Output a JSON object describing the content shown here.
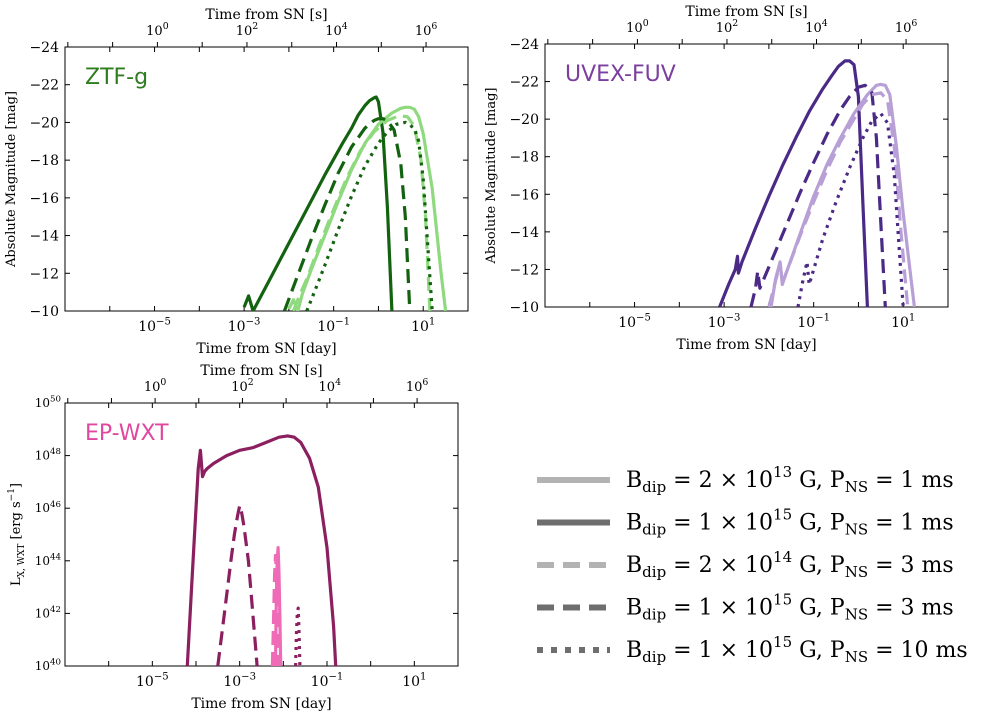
{
  "figure": {
    "legend": [
      {
        "style": "solid",
        "shade": "light",
        "label": "B_dip = 2×10^13 G, P_NS = 1 ms",
        "b_mant": "2",
        "b_exp": "13",
        "p": "1"
      },
      {
        "style": "solid",
        "shade": "dark",
        "label": "B_dip = 1×10^15 G, P_NS = 1 ms",
        "b_mant": "1",
        "b_exp": "15",
        "p": "1"
      },
      {
        "style": "dashed",
        "shade": "light",
        "label": "B_dip = 2×10^14 G, P_NS = 3 ms",
        "b_mant": "2",
        "b_exp": "14",
        "p": "3"
      },
      {
        "style": "dashed",
        "shade": "dark",
        "label": "B_dip = 1×10^15 G, P_NS = 3 ms",
        "b_mant": "1",
        "b_exp": "15",
        "p": "3"
      },
      {
        "style": "dotted",
        "shade": "dark",
        "label": "B_dip = 1×10^15 G, P_NS = 10 ms",
        "b_mant": "1",
        "b_exp": "15",
        "p": "10"
      }
    ],
    "legend_texts": {
      "b_sym": "B",
      "b_sub": "dip",
      "p_sym": "P",
      "p_sub": "NS",
      "unit_g": "G,",
      "unit_ms": "ms",
      "times": "×",
      "eq": "=",
      "ten": "10"
    }
  },
  "chart_data": [
    {
      "id": "ztf",
      "type": "line",
      "instrument": "ZTF-g",
      "color": "#2e7d1f",
      "xlabel": "Time from SN [day]",
      "top_xlabel": "Time from SN [s]",
      "ylabel": "Absolute Magnitude [mag]",
      "xscale": "log",
      "yscale": "linear",
      "y_inverted": true,
      "xlim": [
        -7,
        2
      ],
      "ylim": [
        -10,
        -24
      ],
      "x_tick_labels": [
        {
          "exp": "−5",
          "v": -5
        },
        {
          "exp": "−3",
          "v": -3
        },
        {
          "exp": "−1",
          "v": -1
        },
        {
          "exp": "1",
          "v": 1
        }
      ],
      "y_tick_labels": [
        "−24",
        "−22",
        "−20",
        "−18",
        "−16",
        "−14",
        "−12",
        "−10"
      ],
      "y_ticks": [
        -24,
        -22,
        -20,
        -18,
        -16,
        -14,
        -12,
        -10
      ],
      "top_tick_labels": [
        {
          "exp": "0",
          "v": 0
        },
        {
          "exp": "2",
          "v": 2
        },
        {
          "exp": "4",
          "v": 4
        },
        {
          "exp": "6",
          "v": 6
        }
      ],
      "series": [
        {
          "style": "solid",
          "shade": "dark",
          "x": [
            -3.0,
            -2.9,
            -2.8,
            -2.4,
            -2.0,
            -1.6,
            -1.2,
            -0.8,
            -0.6,
            -0.45,
            -0.3,
            -0.2,
            -0.1,
            -0.05,
            0.0,
            0.1,
            0.2,
            0.3
          ],
          "y": [
            -10.2,
            -10.8,
            -10.0,
            -11.8,
            -13.6,
            -15.4,
            -17.2,
            -18.9,
            -19.7,
            -20.4,
            -20.9,
            -21.15,
            -21.3,
            -21.35,
            -21.1,
            -19.5,
            -15.5,
            -10.0
          ]
        },
        {
          "style": "solid",
          "shade": "light",
          "x": [
            -2.0,
            -1.9,
            -1.8,
            -1.7,
            -1.5,
            -1.2,
            -0.9,
            -0.6,
            -0.3,
            0.0,
            0.3,
            0.5,
            0.6,
            0.7,
            0.8,
            0.9,
            1.0,
            1.2,
            1.4,
            1.5
          ],
          "y": [
            -10.1,
            -10.6,
            -10.0,
            -10.9,
            -12.2,
            -14.0,
            -15.8,
            -17.5,
            -18.9,
            -19.9,
            -20.5,
            -20.75,
            -20.8,
            -20.8,
            -20.7,
            -20.3,
            -19.4,
            -16.5,
            -12.0,
            -10.0
          ]
        },
        {
          "style": "dashed",
          "shade": "dark",
          "x": [
            -2.1,
            -1.8,
            -1.5,
            -1.2,
            -0.9,
            -0.6,
            -0.3,
            -0.1,
            0.0,
            0.1,
            0.2,
            0.35,
            0.5,
            0.6,
            0.7
          ],
          "y": [
            -10.0,
            -11.9,
            -13.8,
            -15.6,
            -17.3,
            -18.7,
            -19.7,
            -20.1,
            -20.2,
            -20.2,
            -20.1,
            -19.6,
            -17.8,
            -15.0,
            -10.0
          ]
        },
        {
          "style": "dashed",
          "shade": "light",
          "x": [
            -1.9,
            -1.75,
            -1.6,
            -1.3,
            -1.0,
            -0.7,
            -0.4,
            -0.1,
            0.2,
            0.4,
            0.5,
            0.65,
            0.8,
            0.95,
            1.05,
            1.15
          ],
          "y": [
            -10.0,
            -10.9,
            -11.7,
            -13.6,
            -15.4,
            -17.1,
            -18.5,
            -19.5,
            -20.1,
            -20.3,
            -20.35,
            -20.3,
            -19.8,
            -18.0,
            -15.0,
            -10.0
          ]
        },
        {
          "style": "dotted",
          "shade": "dark",
          "x": [
            -1.6,
            -1.4,
            -1.2,
            -0.9,
            -0.6,
            -0.3,
            0.0,
            0.2,
            0.4,
            0.6,
            0.8,
            0.9,
            1.0,
            1.1,
            1.2
          ],
          "y": [
            -10.0,
            -11.2,
            -12.4,
            -14.3,
            -16.1,
            -17.7,
            -18.9,
            -19.5,
            -19.9,
            -20.0,
            -19.7,
            -19.0,
            -17.0,
            -13.5,
            -10.0
          ]
        }
      ]
    },
    {
      "id": "uvex",
      "type": "line",
      "instrument": "UVEX-FUV",
      "color": "#7b3fa0",
      "xlabel": "Time from SN [day]",
      "top_xlabel": "Time from SN [s]",
      "ylabel": "Absolute Magnitude [mag]",
      "xscale": "log",
      "yscale": "linear",
      "y_inverted": true,
      "xlim": [
        -7,
        2
      ],
      "ylim": [
        -10,
        -24
      ],
      "x_tick_labels": [
        {
          "exp": "−5",
          "v": -5
        },
        {
          "exp": "−3",
          "v": -3
        },
        {
          "exp": "−1",
          "v": -1
        },
        {
          "exp": "1",
          "v": 1
        }
      ],
      "y_tick_labels": [
        "−24",
        "−22",
        "−20",
        "−18",
        "−16",
        "−14",
        "−12",
        "−10"
      ],
      "y_ticks": [
        -24,
        -22,
        -20,
        -18,
        -16,
        -14,
        -12,
        -10
      ],
      "top_tick_labels": [
        {
          "exp": "0",
          "v": 0
        },
        {
          "exp": "2",
          "v": 2
        },
        {
          "exp": "4",
          "v": 4
        },
        {
          "exp": "6",
          "v": 6
        }
      ],
      "series": [
        {
          "style": "solid",
          "shade": "dark",
          "x": [
            -3.1,
            -2.9,
            -2.75,
            -2.7,
            -2.68,
            -2.6,
            -2.3,
            -2.0,
            -1.7,
            -1.4,
            -1.1,
            -0.8,
            -0.6,
            -0.45,
            -0.3,
            -0.2,
            -0.1,
            0.0,
            0.1,
            0.2
          ],
          "y": [
            -10.0,
            -11.2,
            -12.0,
            -12.7,
            -11.8,
            -12.4,
            -14.2,
            -15.9,
            -17.5,
            -19.0,
            -20.4,
            -21.6,
            -22.3,
            -22.8,
            -23.1,
            -23.1,
            -22.9,
            -21.2,
            -15.5,
            -10.0
          ]
        },
        {
          "style": "solid",
          "shade": "light",
          "x": [
            -1.95,
            -1.85,
            -1.75,
            -1.7,
            -1.6,
            -1.3,
            -1.0,
            -0.7,
            -0.4,
            -0.1,
            0.2,
            0.4,
            0.5,
            0.6,
            0.7,
            0.85,
            1.0,
            1.15,
            1.25
          ],
          "y": [
            -10.0,
            -11.5,
            -12.4,
            -11.2,
            -11.9,
            -13.9,
            -15.9,
            -17.6,
            -19.0,
            -20.3,
            -21.3,
            -21.8,
            -21.85,
            -21.8,
            -21.3,
            -18.5,
            -15.0,
            -12.0,
            -10.0
          ]
        },
        {
          "style": "dashed",
          "shade": "dark",
          "x": [
            -2.4,
            -2.3,
            -2.25,
            -2.2,
            -1.9,
            -1.6,
            -1.3,
            -1.0,
            -0.7,
            -0.4,
            -0.2,
            0.0,
            0.15,
            0.3,
            0.4,
            0.5,
            0.6
          ],
          "y": [
            -10.0,
            -11.0,
            -11.9,
            -11.0,
            -12.7,
            -14.4,
            -16.1,
            -17.7,
            -19.2,
            -20.5,
            -21.2,
            -21.7,
            -21.8,
            -21.4,
            -19.0,
            -14.5,
            -10.0
          ]
        },
        {
          "style": "dashed",
          "shade": "light",
          "x": [
            -2.0,
            -1.85,
            -1.75,
            -1.7,
            -1.6,
            -1.3,
            -1.0,
            -0.7,
            -0.4,
            -0.1,
            0.1,
            0.3,
            0.5,
            0.65,
            0.8,
            0.95,
            1.1
          ],
          "y": [
            -10.0,
            -11.4,
            -12.3,
            -11.3,
            -11.9,
            -13.8,
            -15.6,
            -17.3,
            -18.8,
            -20.0,
            -20.8,
            -21.3,
            -21.4,
            -21.0,
            -18.5,
            -14.0,
            -10.0
          ]
        },
        {
          "style": "dotted",
          "shade": "dark",
          "x": [
            -1.35,
            -1.25,
            -1.15,
            -1.1,
            -1.0,
            -0.8,
            -0.5,
            -0.2,
            0.1,
            0.3,
            0.5,
            0.65,
            0.8,
            0.9,
            1.0
          ],
          "y": [
            -10.0,
            -11.3,
            -12.4,
            -11.2,
            -12.0,
            -13.6,
            -15.6,
            -17.4,
            -19.0,
            -19.9,
            -20.3,
            -19.8,
            -17.0,
            -13.5,
            -10.0
          ]
        }
      ]
    },
    {
      "id": "ep",
      "type": "line",
      "instrument": "EP-WXT",
      "color": "#e0479e",
      "xlabel": "Time from SN [day]",
      "top_xlabel": "Time from SN [s]",
      "ylabel_main": "L",
      "ylabel_sub": "X, WXT",
      "ylabel_unit": "[erg s",
      "ylabel_unit_exp": "−1",
      "ylabel_close": "]",
      "xscale": "log",
      "yscale": "log",
      "xlim": [
        -7,
        2
      ],
      "ylim": [
        40,
        50
      ],
      "x_tick_labels": [
        {
          "exp": "−5",
          "v": -5
        },
        {
          "exp": "−3",
          "v": -3
        },
        {
          "exp": "−1",
          "v": -1
        },
        {
          "exp": "1",
          "v": 1
        }
      ],
      "y_tick_labels": [
        {
          "exp": "50",
          "v": 50
        },
        {
          "exp": "48",
          "v": 48
        },
        {
          "exp": "46",
          "v": 46
        },
        {
          "exp": "44",
          "v": 44
        },
        {
          "exp": "42",
          "v": 42
        },
        {
          "exp": "40",
          "v": 40
        }
      ],
      "top_tick_labels": [
        {
          "exp": "0",
          "v": 0
        },
        {
          "exp": "2",
          "v": 2
        },
        {
          "exp": "4",
          "v": 4
        },
        {
          "exp": "6",
          "v": 6
        }
      ],
      "series": [
        {
          "style": "solid",
          "shade": "dark",
          "x": [
            -4.2,
            -4.1,
            -4.0,
            -3.95,
            -3.9,
            -3.85,
            -3.8,
            -3.75,
            -3.6,
            -3.3,
            -3.0,
            -2.7,
            -2.4,
            -2.1,
            -1.9,
            -1.75,
            -1.6,
            -1.4,
            -1.2,
            -1.0,
            -0.85,
            -0.8
          ],
          "y": [
            40.0,
            43.0,
            46.0,
            47.5,
            48.2,
            47.2,
            47.4,
            47.5,
            47.7,
            48.0,
            48.2,
            48.3,
            48.5,
            48.7,
            48.75,
            48.7,
            48.5,
            47.9,
            46.8,
            44.5,
            41.5,
            40.0
          ]
        },
        {
          "style": "dashed",
          "shade": "dark",
          "x": [
            -3.5,
            -3.35,
            -3.2,
            -3.12,
            -3.05,
            -3.0,
            -2.95,
            -2.9,
            -2.8,
            -2.7,
            -2.6
          ],
          "y": [
            40.0,
            42.0,
            44.0,
            45.0,
            45.7,
            46.1,
            45.8,
            45.3,
            44.0,
            42.0,
            40.0
          ]
        },
        {
          "style": "solid",
          "shade": "light",
          "x": [
            -2.18,
            -2.16,
            -2.14,
            -2.12,
            -2.1,
            -2.08,
            -2.06
          ],
          "y": [
            40.0,
            42.5,
            44.0,
            44.5,
            43.5,
            42.0,
            40.0
          ]
        },
        {
          "style": "dashed",
          "shade": "light",
          "x": [
            -2.25,
            -2.22,
            -2.2,
            -2.18,
            -2.16,
            -2.14,
            -2.12
          ],
          "y": [
            40.0,
            42.0,
            43.5,
            44.2,
            43.6,
            42.0,
            40.0
          ]
        },
        {
          "style": "dotted",
          "shade": "dark",
          "x": [
            -1.72,
            -1.7,
            -1.68,
            -1.66,
            -1.64,
            -1.62
          ],
          "y": [
            40.0,
            41.2,
            42.0,
            42.2,
            41.2,
            40.0
          ]
        }
      ]
    }
  ]
}
